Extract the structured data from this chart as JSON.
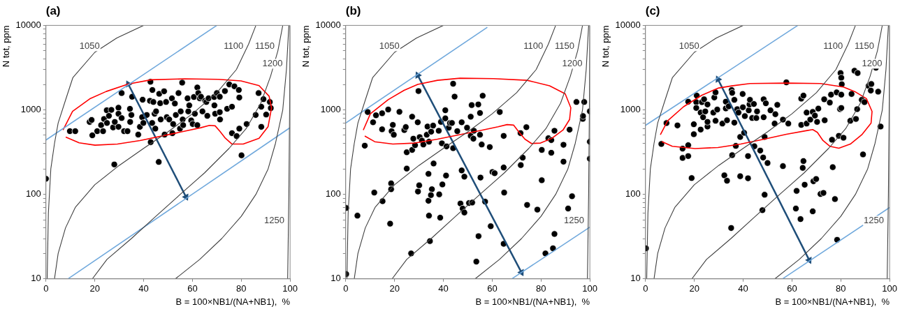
{
  "chart_data": [
    {
      "type": "scatter",
      "title": "(a)",
      "xlabel": "B = 100×NB1/(NA+NB1),  %",
      "ylabel": "N tot, ppm",
      "log": "y",
      "grid": false,
      "xlim": [
        0,
        100
      ],
      "xticks": [
        0,
        20,
        40,
        60,
        80,
        100
      ],
      "ylim": [
        10,
        10000
      ],
      "yticks": [
        10,
        {
          "value": 20,
          "label": null
        },
        {
          "value": 30,
          "label": null
        },
        {
          "value": 40,
          "label": null
        },
        {
          "value": 50,
          "label": null
        },
        {
          "value": 60,
          "label": null
        },
        {
          "value": 70,
          "label": null
        },
        {
          "value": 80,
          "label": null
        },
        {
          "value": 90,
          "label": null
        },
        100,
        {
          "value": 200,
          "label": null
        },
        {
          "value": 300,
          "label": null
        },
        {
          "value": 400,
          "label": null
        },
        {
          "value": 500,
          "label": null
        },
        {
          "value": 600,
          "label": null
        },
        {
          "value": 700,
          "label": null
        },
        {
          "value": 800,
          "label": null
        },
        {
          "value": 900,
          "label": null
        },
        1000,
        {
          "value": 2000,
          "label": null
        },
        {
          "value": 3000,
          "label": null
        },
        {
          "value": 4000,
          "label": null
        },
        {
          "value": 5000,
          "label": null
        },
        {
          "value": 6000,
          "label": null
        },
        {
          "value": 7000,
          "label": null
        },
        {
          "value": 8000,
          "label": null
        },
        {
          "value": 9000,
          "label": null
        },
        10000
      ],
      "series": [
        {
          "type": "line",
          "name": "1050",
          "color": "#404040",
          "x": [
            0.5,
            1,
            2,
            3.5,
            5,
            8,
            11,
            20,
            29,
            40
          ],
          "values": [
            10,
            60,
            200,
            400,
            700,
            1300,
            2400,
            4800,
            7100,
            10000
          ]
        },
        {
          "type": "line",
          "name": "1100",
          "color": "#404040",
          "x": [
            3.5,
            5,
            8,
            12,
            20,
            30,
            40,
            50,
            60,
            70,
            78,
            83,
            86
          ],
          "values": [
            10,
            20,
            40,
            70,
            130,
            220,
            350,
            550,
            900,
            1600,
            3000,
            6000,
            10000
          ]
        },
        {
          "type": "line",
          "name": "1150",
          "color": "#404040",
          "x": [
            19,
            25,
            35,
            45,
            55,
            65,
            75,
            82,
            88,
            92,
            95,
            97
          ],
          "values": [
            10,
            17,
            30,
            55,
            100,
            180,
            350,
            600,
            1200,
            2500,
            5000,
            10000
          ]
        },
        {
          "type": "line",
          "name": "1200",
          "color": "#404040",
          "x": [
            53,
            63,
            72,
            80,
            86,
            91,
            94,
            97,
            98.5,
            99.5
          ],
          "values": [
            10,
            17,
            30,
            55,
            100,
            200,
            400,
            1000,
            3000,
            10000
          ]
        },
        {
          "type": "line",
          "name": "1250",
          "color": "#404040",
          "x": [
            99,
            99.5,
            99.8,
            100
          ],
          "values": [
            10,
            100,
            1000,
            10000
          ]
        },
        {
          "type": "line",
          "color": "#6fa8dc",
          "x": [
            0,
            70
          ],
          "values": [
            440,
            10000
          ]
        },
        {
          "type": "line",
          "color": "#6fa8dc",
          "x": [
            9,
            100
          ],
          "values": [
            10,
            616
          ]
        },
        {
          "type": "line",
          "color": "#ff0000",
          "x": [
            7,
            10.9,
            18.2,
            24.7,
            33.7,
            43.1,
            56.9,
            70.7,
            79.9,
            87.3,
            91.4,
            92.4,
            91,
            87.3,
            80.8,
            76.2,
            73.5,
            71.2,
            69.3,
            67,
            63.4,
            56.9,
            47.7,
            38.5,
            29.3,
            20.1,
            13.6,
            8.1
          ],
          "values": [
            577,
            961,
            1364,
            1652,
            2023,
            2270,
            2330,
            2300,
            2200,
            1936,
            1452,
            1057,
            635,
            462,
            394,
            394,
            462,
            560,
            648,
            656,
            615,
            560,
            492,
            434,
            394,
            382,
            407,
            476
          ]
        },
        {
          "type": "line",
          "color": "#1f4e79",
          "marker": "triangle",
          "x": [
            33.7,
            57.4
          ],
          "values": [
            2020,
            93
          ]
        },
        {
          "type": "scatter",
          "color": "#000000",
          "marker": "circle",
          "x": [
            9.8,
            12,
            17.9,
            18.7,
            19,
            21,
            22.6,
            23.4,
            23.8,
            24.9,
            25,
            25.8,
            26.8,
            27.5,
            28.2,
            28,
            29.7,
            29.7,
            29.7,
            31,
            31,
            32,
            33.4,
            34.4,
            34.5,
            35.3,
            35,
            37.8,
            38.5,
            39.4,
            39.6,
            39.9,
            41.3,
            42.6,
            42.8,
            42.9,
            43.6,
            43.5,
            44,
            44.5,
            44.8,
            45.1,
            46.2,
            46.4,
            46.8,
            47,
            48.4,
            48.6,
            49.2,
            49.5,
            50.5,
            51.6,
            51.8,
            52.1,
            52.8,
            53.2,
            54.3,
            54.9,
            55.2,
            55.8,
            56,
            56.2,
            58,
            58.3,
            58.7,
            59.5,
            60.1,
            60.6,
            61,
            62,
            62,
            62.4,
            63,
            63.5,
            64.1,
            65.2,
            65.7,
            66.1,
            66.6,
            68.9,
            69,
            69.3,
            70,
            71.2,
            71.2,
            71.3,
            73.3,
            74.2,
            75.1,
            76.2,
            76.2,
            77.2,
            78.1,
            79,
            79.2,
            79.2,
            80.1,
            82.2,
            85.9,
            87.1,
            88.2,
            88.2,
            89.1,
            90.2,
            91.7,
            92.1,
            0
          ],
          "values": [
            560,
            560,
            720,
            760,
            500,
            560,
            660,
            560,
            780,
            990,
            700,
            850,
            1000,
            620,
            720,
            226,
            1060,
            900,
            630,
            1580,
            800,
            560,
            560,
            1030,
            720,
            1430,
            870,
            510,
            630,
            820,
            1320,
            700,
            870,
            1280,
            2150,
            415,
            1720,
            700,
            1240,
            900,
            600,
            960,
            242,
            1550,
            1200,
            770,
            1660,
            510,
            1240,
            820,
            770,
            1370,
            530,
            680,
            1190,
            870,
            1580,
            600,
            960,
            2100,
            770,
            660,
            1370,
            960,
            1130,
            750,
            680,
            1420,
            900,
            1840,
            660,
            1580,
            1370,
            1430,
            960,
            1280,
            1240,
            850,
            1370,
            1420,
            1130,
            900,
            1580,
            1430,
            940,
            770,
            1670,
            1030,
            2000,
            1090,
            530,
            1900,
            490,
            1720,
            600,
            1400,
            290,
            680,
            870,
            1580,
            1090,
            630,
            1340,
            880,
            1240,
            1050,
            153
          ]
        }
      ]
    },
    {
      "type": "scatter",
      "title": "(b)",
      "xlabel": "B = 100×NB1/(NA+NB1),  %",
      "ylabel": "N tot, ppm",
      "log": "y",
      "grid": false,
      "xlim": [
        0,
        100
      ],
      "xticks": [
        0,
        20,
        40,
        60,
        80,
        100
      ],
      "ylim": [
        10,
        10000
      ],
      "yticks": [
        10,
        {
          "value": 20,
          "label": null
        },
        {
          "value": 30,
          "label": null
        },
        {
          "value": 40,
          "label": null
        },
        {
          "value": 50,
          "label": null
        },
        {
          "value": 60,
          "label": null
        },
        {
          "value": 70,
          "label": null
        },
        {
          "value": 80,
          "label": null
        },
        {
          "value": 90,
          "label": null
        },
        100,
        {
          "value": 200,
          "label": null
        },
        {
          "value": 300,
          "label": null
        },
        {
          "value": 400,
          "label": null
        },
        {
          "value": 500,
          "label": null
        },
        {
          "value": 600,
          "label": null
        },
        {
          "value": 700,
          "label": null
        },
        {
          "value": 800,
          "label": null
        },
        {
          "value": 900,
          "label": null
        },
        1000,
        {
          "value": 2000,
          "label": null
        },
        {
          "value": 3000,
          "label": null
        },
        {
          "value": 4000,
          "label": null
        },
        {
          "value": 5000,
          "label": null
        },
        {
          "value": 6000,
          "label": null
        },
        {
          "value": 7000,
          "label": null
        },
        {
          "value": 8000,
          "label": null
        },
        {
          "value": 9000,
          "label": null
        },
        10000
      ],
      "series": [
        {
          "type": "line",
          "name": "1050",
          "color": "#404040",
          "x": [
            0.5,
            1,
            2,
            3.5,
            5,
            8,
            11,
            20,
            29,
            40
          ],
          "values": [
            10,
            60,
            200,
            400,
            700,
            1300,
            2400,
            4800,
            7100,
            10000
          ]
        },
        {
          "type": "line",
          "name": "1100",
          "color": "#404040",
          "x": [
            3.5,
            5,
            8,
            12,
            20,
            30,
            40,
            50,
            60,
            70,
            78,
            83,
            86
          ],
          "values": [
            10,
            20,
            40,
            70,
            130,
            220,
            350,
            550,
            900,
            1600,
            3000,
            6000,
            10000
          ]
        },
        {
          "type": "line",
          "name": "1150",
          "color": "#404040",
          "x": [
            19,
            25,
            35,
            45,
            55,
            65,
            75,
            82,
            88,
            92,
            95,
            97
          ],
          "values": [
            10,
            17,
            30,
            55,
            100,
            180,
            350,
            600,
            1200,
            2500,
            5000,
            10000
          ]
        },
        {
          "type": "line",
          "name": "1200",
          "color": "#404040",
          "x": [
            53,
            63,
            72,
            80,
            86,
            91,
            94,
            97,
            98.5,
            99.5
          ],
          "values": [
            10,
            17,
            30,
            55,
            100,
            200,
            400,
            1000,
            3000,
            10000
          ]
        },
        {
          "type": "line",
          "name": "1250",
          "color": "#404040",
          "x": [
            99,
            99.5,
            99.8,
            100
          ],
          "values": [
            10,
            100,
            1000,
            10000
          ]
        },
        {
          "type": "line",
          "color": "#6fa8dc",
          "x": [
            0,
            58
          ],
          "values": [
            700,
            9500
          ]
        },
        {
          "type": "line",
          "color": "#6fa8dc",
          "x": [
            68,
            100
          ],
          "values": [
            10,
            41
          ]
        },
        {
          "type": "line",
          "color": "#ff0000",
          "x": [
            7.2,
            10.1,
            17.4,
            23.9,
            29.5,
            37.6,
            46.8,
            60.6,
            74.3,
            83.5,
            89.9,
            92.2,
            91.7,
            89,
            84.4,
            79.8,
            76.1,
            73.4,
            71.1,
            68.8,
            66.1,
            62.4,
            56,
            46.8,
            37.6,
            28.4,
            19.3,
            11.9,
            7.8
          ],
          "values": [
            577,
            900,
            1322,
            1702,
            2000,
            2240,
            2370,
            2340,
            2240,
            1930,
            1550,
            1060,
            770,
            577,
            460,
            405,
            400,
            450,
            540,
            660,
            670,
            630,
            577,
            510,
            450,
            405,
            394,
            420,
            490
          ]
        },
        {
          "type": "line",
          "color": "#1f4e79",
          "marker": "triangle",
          "x": [
            29.5,
            72
          ],
          "values": [
            2570,
            11.9
          ]
        },
        {
          "type": "scatter",
          "color": "#000000",
          "marker": "circle",
          "x": [
            0.2,
            0.2,
            4.8,
            7.8,
            9,
            11.2,
            12.4,
            11.7,
            14.9,
            14.9,
            15.1,
            17.4,
            18.2,
            18.6,
            18.6,
            18.8,
            19.3,
            19.7,
            22,
            24,
            24.6,
            25,
            25,
            26.8,
            27.2,
            27.2,
            27.7,
            28.4,
            29.5,
            29.8,
            30.3,
            29.6,
            30.1,
            31.2,
            31.8,
            33.2,
            33.5,
            34.1,
            33.9,
            33.9,
            34.1,
            34.5,
            35,
            35.3,
            34.9,
            35.8,
            36,
            38.1,
            38.3,
            38.7,
            39,
            39.4,
            39.6,
            40.8,
            40.8,
            41.3,
            41.1,
            42.2,
            42.7,
            43.5,
            44,
            44.6,
            44,
            45.7,
            47,
            47.5,
            47.5,
            47.9,
            48.6,
            48.6,
            49.7,
            50.5,
            51.2,
            51.2,
            51.6,
            51.8,
            52.3,
            52.5,
            54.3,
            54.4,
            53.5,
            55,
            55,
            55.2,
            55.7,
            56.1,
            57.1,
            59,
            59.4,
            60.1,
            61,
            63.1,
            64.7,
            64.7,
            64.9,
            64.7,
            71.6,
            72.5,
            71.7,
            74,
            74.3,
            78.5,
            80.3,
            80.3,
            81.8,
            83,
            84.2,
            84.2,
            84.9,
            85.5,
            85.5,
            89.2,
            89.2,
            91.7,
            91.1,
            92.7,
            94.5,
            97.1,
            97.2,
            97.7,
            100,
            100,
            100
          ],
          "values": [
            69,
            11.4,
            56,
            377,
            943,
            713,
            863,
            105,
            912,
            589,
            83,
            1010,
            45,
            135,
            115,
            560,
            664,
            508,
            948,
            577,
            626,
            315,
            202,
            20,
            830,
            336,
            456,
            382,
            713,
            1670,
            476,
            108,
            128,
            433,
            389,
            508,
            635,
            420,
            175,
            84,
            56,
            28,
            552,
            115,
            98,
            652,
            232,
            566,
            100,
            53,
            721,
            402,
            131,
            990,
            794,
            370,
            167,
            615,
            698,
            700,
            2040,
            1435,
            352,
            560,
            78,
            713,
            192,
            68,
            162,
            61,
            615,
            79,
            830,
            492,
            1140,
            80,
            456,
            566,
            1160,
            32,
            16,
            919,
            508,
            158,
            389,
            1470,
            82,
            363,
            42,
            184,
            178,
            943,
            492,
            208,
            105,
            26,
            531,
            272,
            222,
            624,
            75,
            66,
            336,
            147,
            20,
            462,
            439,
            311,
            23,
            34,
            566,
            386,
            244,
            584,
            68,
            95,
            1240,
            783,
            845,
            1240,
            962,
            420,
            264
          ]
        }
      ]
    },
    {
      "type": "scatter",
      "title": "(c)",
      "xlabel": "B = 100×NB1/(NA+NB1),  %",
      "ylabel": "N tot, ppm",
      "log": "y",
      "grid": false,
      "xlim": [
        0,
        100
      ],
      "xticks": [
        0,
        20,
        40,
        60,
        80,
        100
      ],
      "ylim": [
        10,
        10000
      ],
      "yticks": [
        10,
        {
          "value": 20,
          "label": null
        },
        {
          "value": 30,
          "label": null
        },
        {
          "value": 40,
          "label": null
        },
        {
          "value": 50,
          "label": null
        },
        {
          "value": 60,
          "label": null
        },
        {
          "value": 70,
          "label": null
        },
        {
          "value": 80,
          "label": null
        },
        {
          "value": 90,
          "label": null
        },
        100,
        {
          "value": 200,
          "label": null
        },
        {
          "value": 300,
          "label": null
        },
        {
          "value": 400,
          "label": null
        },
        {
          "value": 500,
          "label": null
        },
        {
          "value": 600,
          "label": null
        },
        {
          "value": 700,
          "label": null
        },
        {
          "value": 800,
          "label": null
        },
        {
          "value": 900,
          "label": null
        },
        1000,
        {
          "value": 2000,
          "label": null
        },
        {
          "value": 3000,
          "label": null
        },
        {
          "value": 4000,
          "label": null
        },
        {
          "value": 5000,
          "label": null
        },
        {
          "value": 6000,
          "label": null
        },
        {
          "value": 7000,
          "label": null
        },
        {
          "value": 8000,
          "label": null
        },
        {
          "value": 9000,
          "label": null
        },
        10000
      ],
      "series": [
        {
          "type": "line",
          "name": "1050",
          "color": "#404040",
          "x": [
            0.5,
            1,
            2,
            3.5,
            5,
            8,
            11,
            20,
            29,
            40
          ],
          "values": [
            10,
            60,
            200,
            400,
            700,
            1300,
            2400,
            4800,
            7100,
            10000
          ]
        },
        {
          "type": "line",
          "name": "1100",
          "color": "#404040",
          "x": [
            3.5,
            5,
            8,
            12,
            20,
            30,
            40,
            50,
            60,
            70,
            78,
            83,
            86
          ],
          "values": [
            10,
            20,
            40,
            70,
            130,
            220,
            350,
            550,
            900,
            1600,
            3000,
            6000,
            10000
          ]
        },
        {
          "type": "line",
          "name": "1150",
          "color": "#404040",
          "x": [
            19,
            25,
            35,
            45,
            55,
            65,
            75,
            82,
            88,
            92,
            95,
            97
          ],
          "values": [
            10,
            17,
            30,
            55,
            100,
            180,
            350,
            600,
            1200,
            2500,
            5000,
            10000
          ]
        },
        {
          "type": "line",
          "name": "1200",
          "color": "#404040",
          "x": [
            53,
            63,
            72,
            80,
            86,
            91,
            94,
            97,
            98.5,
            99.5
          ],
          "values": [
            10,
            17,
            30,
            55,
            100,
            200,
            400,
            1000,
            3000,
            10000
          ]
        },
        {
          "type": "line",
          "name": "1250",
          "color": "#404040",
          "x": [
            99,
            99.5,
            99.8,
            100
          ],
          "values": [
            10,
            100,
            1000,
            10000
          ]
        },
        {
          "type": "line",
          "color": "#6fa8dc",
          "x": [
            0,
            62.4
          ],
          "values": [
            655,
            10000
          ]
        },
        {
          "type": "line",
          "color": "#6fa8dc",
          "x": [
            56.1,
            100
          ],
          "values": [
            10,
            70
          ]
        },
        {
          "type": "line",
          "color": "#ff0000",
          "x": [
            6.1,
            9.1,
            15.6,
            23.1,
            29.7,
            35.3,
            42.8,
            57.7,
            71.7,
            81.1,
            85.8,
            90.5,
            92.8,
            92.4,
            88.6,
            83.9,
            79.2,
            75.5,
            72.7,
            70.4,
            68.5,
            66.2,
            57.7,
            48.3,
            39,
            29.7,
            20.3,
            11,
            6.7
          ],
          "values": [
            508,
            743,
            1090,
            1493,
            1807,
            1924,
            2050,
            2075,
            2050,
            1866,
            1643,
            1358,
            959,
            698,
            508,
            394,
            352,
            371,
            434,
            542,
            585,
            570,
            515,
            448,
            394,
            359,
            348,
            371,
            421
          ]
        },
        {
          "type": "line",
          "color": "#1f4e79",
          "marker": "triangle",
          "x": [
            29.7,
            67.1
          ],
          "values": [
            2300,
            16.6
          ]
        },
        {
          "type": "scatter",
          "color": "#000000",
          "marker": "circle",
          "x": [
            0.2,
            6.5,
            8.6,
            13.1,
            15.2,
            15.2,
            17.5,
            17.5,
            17.5,
            18.9,
            19.8,
            19.8,
            20.8,
            21,
            20.8,
            22.6,
            22.6,
            23.1,
            23.6,
            24,
            24.5,
            25.4,
            25.4,
            25.4,
            27.8,
            28.2,
            28.7,
            28.7,
            29.4,
            31.5,
            32.3,
            32.9,
            32.9,
            33.4,
            33.4,
            34.1,
            35.1,
            35.3,
            35.5,
            35.5,
            36.4,
            36.4,
            37,
            37.6,
            38.1,
            38.8,
            38.8,
            39.9,
            40.4,
            39.8,
            40.7,
            42,
            42,
            42.3,
            42.6,
            42.8,
            43.7,
            44.4,
            44.6,
            45.7,
            45.4,
            47,
            48.4,
            48.4,
            48.2,
            47.9,
            48.8,
            48.8,
            49.3,
            50,
            51.2,
            52.9,
            53.2,
            54,
            56.3,
            56.3,
            57.7,
            58.5,
            61.9,
            61.6,
            63.5,
            63.8,
            63.8,
            64.7,
            64.7,
            64.4,
            65.2,
            66,
            66,
            67.5,
            68.5,
            68.8,
            68.5,
            69.4,
            69.9,
            70.3,
            70.8,
            71.7,
            72.9,
            73.2,
            73.4,
            75.5,
            76,
            76.7,
            76.4,
            77.6,
            78.3,
            79.2,
            78.5,
            79.7,
            80.2,
            79.9,
            80.2,
            80.4,
            80.2,
            81.1,
            83.9,
            84.4,
            85.6,
            86.9,
            86.2,
            86.7,
            88.6,
            89.1,
            89.7,
            91.4,
            92.5,
            92.3,
            94.4,
            95.3,
            96.3
          ],
          "values": [
            23,
            395,
            698,
            655,
            348,
            270,
            382,
            284,
            1250,
            156,
            515,
            676,
            1235,
            1476,
            1054,
            585,
            929,
            1235,
            818,
            1334,
            959,
            635,
            1159,
            721,
            929,
            1403,
            1611,
            743,
            1009,
            689,
            168,
            1040,
            1250,
            145,
            753,
            1102,
            40,
            1718,
            1592,
            291,
            1315,
            706,
            375,
            1020,
            929,
            164,
            478,
            1074,
            535,
            1543,
            844,
            284,
            155,
            988,
            1159,
            1315,
            801,
            1174,
            371,
            959,
            801,
            330,
            1334,
            818,
            273,
            65,
            99,
            478,
            1197,
            235,
            988,
            689,
            889,
            1146,
            767,
            216,
            2118,
            689,
            110,
            68,
            51,
            664,
            1359,
            1476,
            248,
            206,
            130,
            689,
            929,
            767,
            946,
            143,
            63,
            855,
            152,
            721,
            1036,
            101,
            104,
            1334,
            753,
            1219,
            1515,
            210,
            443,
            88,
            1611,
            493,
            29,
            1020,
            1054,
            2729,
            2403,
            2012,
            1515,
            468,
            743,
            1543,
            2904,
            2729,
            781,
            1020,
            1315,
            297,
            1235,
            1924,
            2024,
            1694,
            3153,
            1643,
            635
          ]
        }
      ]
    }
  ]
}
